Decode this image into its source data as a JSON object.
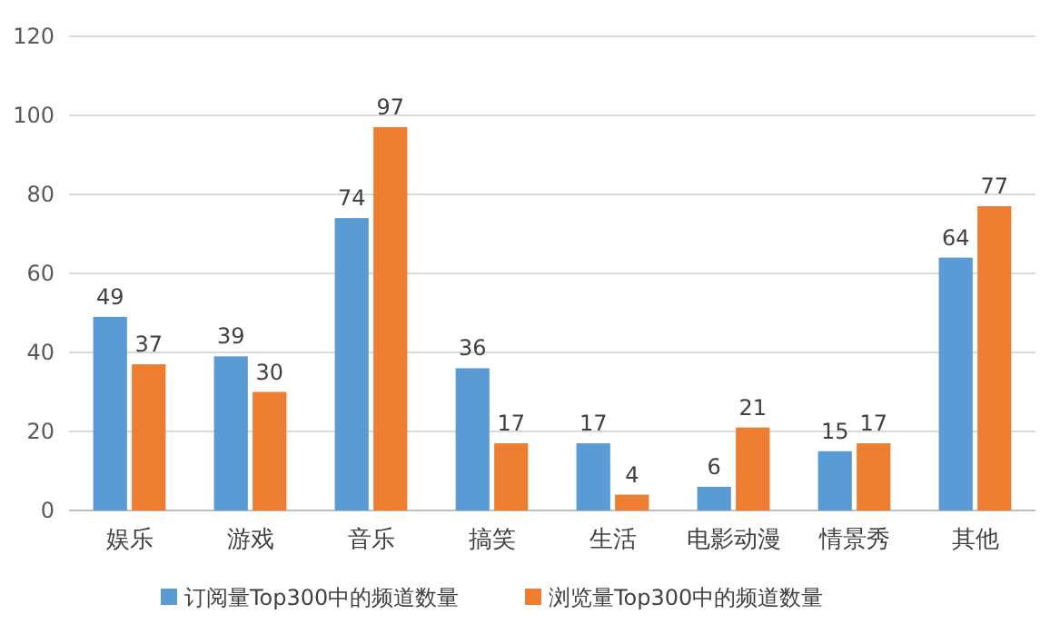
{
  "chart_data": {
    "type": "bar",
    "categories": [
      "娱乐",
      "游戏",
      "音乐",
      "搞笑",
      "生活",
      "电影动漫",
      "情景秀",
      "其他"
    ],
    "series": [
      {
        "name": "订阅量Top300中的频道数量",
        "color": "#5b9bd5",
        "values": [
          49,
          39,
          74,
          36,
          17,
          6,
          15,
          64
        ]
      },
      {
        "name": "浏览量Top300中的频道数量",
        "color": "#ed7d31",
        "values": [
          37,
          30,
          97,
          17,
          4,
          21,
          17,
          77
        ]
      }
    ],
    "ylim": [
      0,
      120
    ],
    "yticks": [
      0,
      20,
      40,
      60,
      80,
      100,
      120
    ],
    "grid": "y",
    "legend": "bottom",
    "data_labels": true
  }
}
